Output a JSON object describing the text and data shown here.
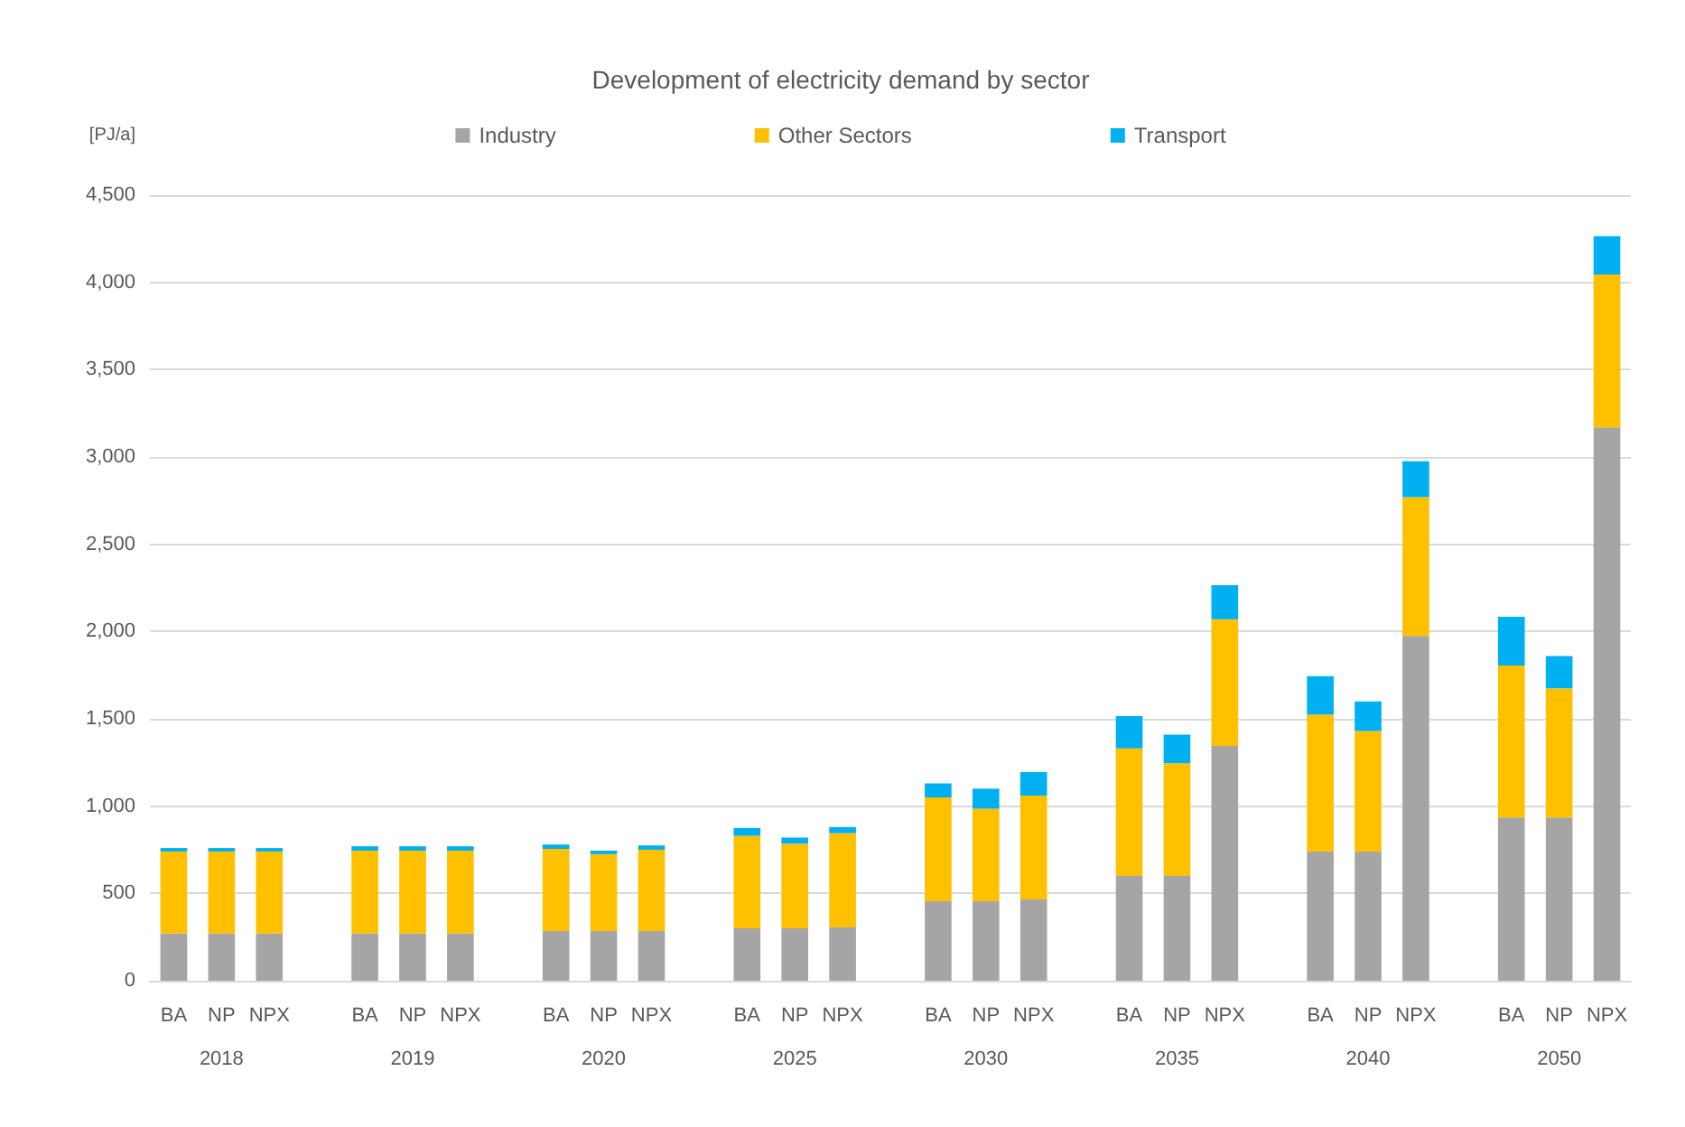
{
  "chart_data": {
    "type": "bar",
    "title": "Development of electricity demand by sector",
    "ylabel": "[PJ/a]",
    "categories": [
      "BA",
      "NP",
      "NPX",
      null,
      "BA",
      "NP",
      "NPX",
      null,
      "BA",
      "NP",
      "NPX",
      null,
      "BA",
      "NP",
      "NPX",
      null,
      "BA",
      "NP",
      "NPX",
      null,
      "BA",
      "NP",
      "NPX",
      null,
      "BA",
      "NP",
      "NPX",
      null,
      "BA",
      "NP",
      "NPX"
    ],
    "annotations": [
      "2018",
      "2019",
      "2020",
      "2025",
      "2030",
      "2035",
      "2040",
      "2050"
    ],
    "stacked": true,
    "series": [
      {
        "name": "Industry",
        "color": "#a5a5a5",
        "values": [
          270,
          270,
          270,
          null,
          270,
          270,
          270,
          null,
          285,
          285,
          285,
          null,
          300,
          300,
          305,
          null,
          455,
          455,
          465,
          null,
          600,
          600,
          1345,
          null,
          740,
          740,
          1975,
          null,
          935,
          935,
          3170
        ]
      },
      {
        "name": "Other Sectors",
        "color": "#ffc000",
        "values": [
          470,
          470,
          470,
          null,
          475,
          475,
          475,
          null,
          470,
          440,
          465,
          null,
          530,
          485,
          540,
          null,
          595,
          530,
          595,
          null,
          730,
          645,
          725,
          null,
          785,
          690,
          795,
          null,
          870,
          740,
          875
        ]
      },
      {
        "name": "Transport",
        "color": "#00b0f0",
        "values": [
          20,
          20,
          20,
          null,
          25,
          25,
          25,
          null,
          25,
          20,
          25,
          null,
          45,
          35,
          35,
          null,
          80,
          115,
          135,
          null,
          185,
          165,
          195,
          null,
          220,
          170,
          205,
          null,
          280,
          185,
          220
        ]
      }
    ],
    "ylim": [
      0,
      4500
    ],
    "yticks": [
      0,
      500,
      {
        "value": 1000,
        "label": "1,000"
      },
      {
        "value": 1500,
        "label": "1,500"
      },
      {
        "value": 2000,
        "label": "2,000"
      },
      {
        "value": 2500,
        "label": "2,500"
      },
      {
        "value": 3000,
        "label": "3,000"
      },
      {
        "value": 3500,
        "label": "3,500"
      },
      {
        "value": 4000,
        "label": "4,000"
      },
      {
        "value": 4500,
        "label": "4,500"
      }
    ],
    "grid": "y",
    "legend": "top"
  }
}
